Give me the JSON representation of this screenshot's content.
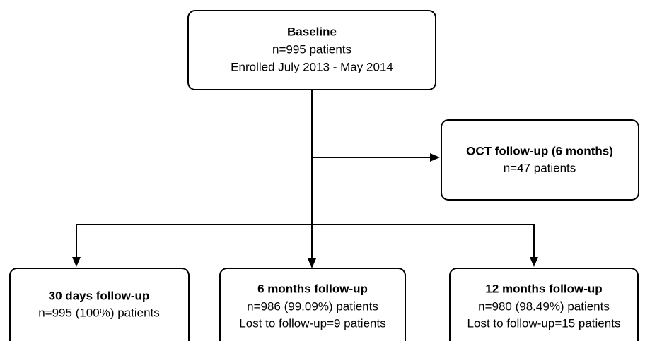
{
  "nodes": [
    {
      "title": "Baseline",
      "lines": [
        "n=995 patients",
        "Enrolled July 2013 - May 2014"
      ]
    },
    {
      "title": "OCT follow-up (6 months)",
      "lines": [
        "n=47 patients"
      ]
    },
    {
      "title": "30 days follow-up",
      "lines": [
        "n=995 (100%) patients"
      ]
    },
    {
      "title": "6 months follow-up",
      "lines": [
        "n=986 (99.09%) patients",
        "Lost to follow-up=9 patients"
      ]
    },
    {
      "title": "12 months follow-up",
      "lines": [
        "n=980 (98.49%) patients",
        "Lost to follow-up=15 patients"
      ]
    }
  ]
}
